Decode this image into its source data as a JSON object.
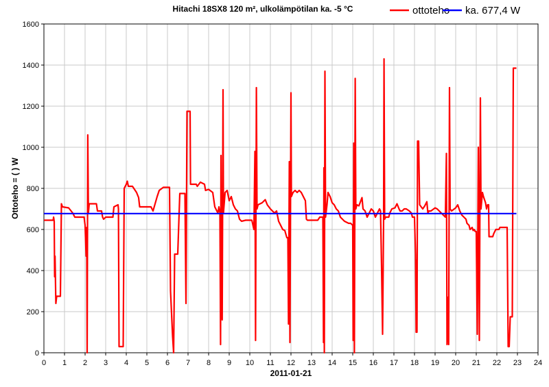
{
  "chart_data": {
    "type": "line",
    "title": "Hitachi 18SX8 120 m², ulkolämpötilan ka. -5 °C",
    "xlabel": "2011-01-21",
    "ylabel": "Ottoteho = ( ) W",
    "xlim": [
      0,
      24
    ],
    "ylim": [
      0,
      1600
    ],
    "x_ticks": [
      "0",
      "1",
      "2",
      "3",
      "4",
      "5",
      "6",
      "7",
      "8",
      "9",
      "10",
      "11",
      "12",
      "13",
      "14",
      "15",
      "16",
      "17",
      "18",
      "19",
      "20",
      "21",
      "22",
      "23",
      "24"
    ],
    "y_ticks": [
      "0",
      "200",
      "400",
      "600",
      "800",
      "1000",
      "1200",
      "1400",
      "1600"
    ],
    "grid": true,
    "legend": "top-right",
    "colors": {
      "ottoteho": "#ff0000",
      "average": "#0000ff"
    },
    "series": [
      {
        "name": "ottoteho",
        "color": "#ff0000",
        "points": [
          [
            0.0,
            645
          ],
          [
            0.45,
            645
          ],
          [
            0.47,
            660
          ],
          [
            0.5,
            640
          ],
          [
            0.52,
            370
          ],
          [
            0.54,
            470
          ],
          [
            0.58,
            240
          ],
          [
            0.62,
            275
          ],
          [
            0.8,
            275
          ],
          [
            0.85,
            725
          ],
          [
            0.9,
            710
          ],
          [
            1.2,
            705
          ],
          [
            1.4,
            680
          ],
          [
            1.5,
            660
          ],
          [
            1.95,
            660
          ],
          [
            2.0,
            620
          ],
          [
            2.05,
            470
          ],
          [
            2.08,
            610
          ],
          [
            2.1,
            0
          ],
          [
            2.13,
            1060
          ],
          [
            2.16,
            680
          ],
          [
            2.2,
            725
          ],
          [
            2.55,
            725
          ],
          [
            2.6,
            690
          ],
          [
            2.8,
            690
          ],
          [
            2.85,
            660
          ],
          [
            2.9,
            650
          ],
          [
            3.0,
            660
          ],
          [
            3.35,
            660
          ],
          [
            3.4,
            710
          ],
          [
            3.6,
            720
          ],
          [
            3.62,
            700
          ],
          [
            3.65,
            30
          ],
          [
            3.85,
            30
          ],
          [
            3.9,
            800
          ],
          [
            4.0,
            820
          ],
          [
            4.05,
            835
          ],
          [
            4.1,
            810
          ],
          [
            4.3,
            810
          ],
          [
            4.5,
            780
          ],
          [
            4.6,
            755
          ],
          [
            4.65,
            710
          ],
          [
            5.2,
            710
          ],
          [
            5.3,
            690
          ],
          [
            5.5,
            760
          ],
          [
            5.6,
            790
          ],
          [
            5.8,
            805
          ],
          [
            6.1,
            805
          ],
          [
            6.15,
            300
          ],
          [
            6.25,
            80
          ],
          [
            6.3,
            0
          ],
          [
            6.35,
            480
          ],
          [
            6.5,
            480
          ],
          [
            6.6,
            775
          ],
          [
            6.85,
            775
          ],
          [
            6.9,
            240
          ],
          [
            6.95,
            1175
          ],
          [
            7.1,
            1175
          ],
          [
            7.12,
            820
          ],
          [
            7.4,
            820
          ],
          [
            7.45,
            810
          ],
          [
            7.6,
            830
          ],
          [
            7.8,
            820
          ],
          [
            7.85,
            790
          ],
          [
            8.0,
            795
          ],
          [
            8.2,
            780
          ],
          [
            8.3,
            710
          ],
          [
            8.4,
            690
          ],
          [
            8.45,
            680
          ],
          [
            8.5,
            710
          ],
          [
            8.55,
            680
          ],
          [
            8.58,
            40
          ],
          [
            8.6,
            960
          ],
          [
            8.63,
            200
          ],
          [
            8.66,
            160
          ],
          [
            8.7,
            1280
          ],
          [
            8.72,
            680
          ],
          [
            8.8,
            780
          ],
          [
            8.9,
            790
          ],
          [
            9.0,
            740
          ],
          [
            9.1,
            760
          ],
          [
            9.2,
            720
          ],
          [
            9.3,
            700
          ],
          [
            9.4,
            690
          ],
          [
            9.5,
            650
          ],
          [
            9.6,
            640
          ],
          [
            9.8,
            645
          ],
          [
            10.1,
            645
          ],
          [
            10.2,
            600
          ],
          [
            10.25,
            980
          ],
          [
            10.28,
            60
          ],
          [
            10.32,
            1290
          ],
          [
            10.35,
            700
          ],
          [
            10.4,
            720
          ],
          [
            10.6,
            730
          ],
          [
            10.75,
            745
          ],
          [
            10.85,
            720
          ],
          [
            11.0,
            700
          ],
          [
            11.2,
            680
          ],
          [
            11.3,
            690
          ],
          [
            11.4,
            640
          ],
          [
            11.5,
            620
          ],
          [
            11.6,
            600
          ],
          [
            11.7,
            595
          ],
          [
            11.8,
            560
          ],
          [
            11.85,
            560
          ],
          [
            11.88,
            140
          ],
          [
            11.92,
            930
          ],
          [
            11.95,
            50
          ],
          [
            12.0,
            1265
          ],
          [
            12.02,
            760
          ],
          [
            12.1,
            780
          ],
          [
            12.2,
            790
          ],
          [
            12.3,
            780
          ],
          [
            12.4,
            790
          ],
          [
            12.5,
            780
          ],
          [
            12.6,
            760
          ],
          [
            12.7,
            740
          ],
          [
            12.75,
            650
          ],
          [
            12.8,
            645
          ],
          [
            13.3,
            645
          ],
          [
            13.4,
            660
          ],
          [
            13.55,
            660
          ],
          [
            13.58,
            50
          ],
          [
            13.6,
            900
          ],
          [
            13.62,
            0
          ],
          [
            13.65,
            1370
          ],
          [
            13.68,
            660
          ],
          [
            13.75,
            720
          ],
          [
            13.8,
            780
          ],
          [
            13.9,
            760
          ],
          [
            14.0,
            730
          ],
          [
            14.1,
            720
          ],
          [
            14.2,
            700
          ],
          [
            14.3,
            690
          ],
          [
            14.4,
            660
          ],
          [
            14.5,
            650
          ],
          [
            14.6,
            640
          ],
          [
            14.8,
            630
          ],
          [
            14.9,
            630
          ],
          [
            15.0,
            620
          ],
          [
            15.02,
            60
          ],
          [
            15.05,
            1020
          ],
          [
            15.08,
            0
          ],
          [
            15.12,
            1335
          ],
          [
            15.15,
            700
          ],
          [
            15.2,
            720
          ],
          [
            15.3,
            715
          ],
          [
            15.45,
            755
          ],
          [
            15.5,
            700
          ],
          [
            15.6,
            690
          ],
          [
            15.7,
            660
          ],
          [
            15.8,
            680
          ],
          [
            15.9,
            700
          ],
          [
            16.0,
            690
          ],
          [
            16.1,
            660
          ],
          [
            16.2,
            680
          ],
          [
            16.3,
            700
          ],
          [
            16.35,
            690
          ],
          [
            16.4,
            420
          ],
          [
            16.45,
            90
          ],
          [
            16.5,
            660
          ],
          [
            16.52,
            1430
          ],
          [
            16.55,
            650
          ],
          [
            16.6,
            660
          ],
          [
            16.75,
            660
          ],
          [
            16.8,
            680
          ],
          [
            16.9,
            700
          ],
          [
            17.05,
            705
          ],
          [
            17.15,
            725
          ],
          [
            17.25,
            700
          ],
          [
            17.3,
            690
          ],
          [
            17.4,
            690
          ],
          [
            17.5,
            700
          ],
          [
            17.6,
            700
          ],
          [
            17.75,
            690
          ],
          [
            17.85,
            680
          ],
          [
            17.9,
            660
          ],
          [
            18.0,
            660
          ],
          [
            18.05,
            480
          ],
          [
            18.08,
            100
          ],
          [
            18.1,
            450
          ],
          [
            18.12,
            100
          ],
          [
            18.15,
            1030
          ],
          [
            18.2,
            1030
          ],
          [
            18.25,
            720
          ],
          [
            18.4,
            700
          ],
          [
            18.5,
            715
          ],
          [
            18.6,
            735
          ],
          [
            18.65,
            680
          ],
          [
            18.7,
            690
          ],
          [
            18.8,
            690
          ],
          [
            19.0,
            705
          ],
          [
            19.1,
            700
          ],
          [
            19.2,
            690
          ],
          [
            19.4,
            670
          ],
          [
            19.5,
            660
          ],
          [
            19.55,
            970
          ],
          [
            19.58,
            40
          ],
          [
            19.62,
            270
          ],
          [
            19.66,
            40
          ],
          [
            19.7,
            1290
          ],
          [
            19.73,
            700
          ],
          [
            19.8,
            690
          ],
          [
            20.0,
            705
          ],
          [
            20.1,
            720
          ],
          [
            20.2,
            690
          ],
          [
            20.3,
            670
          ],
          [
            20.4,
            660
          ],
          [
            20.5,
            650
          ],
          [
            20.55,
            630
          ],
          [
            20.65,
            620
          ],
          [
            20.7,
            600
          ],
          [
            20.8,
            610
          ],
          [
            20.85,
            595
          ],
          [
            20.9,
            600
          ],
          [
            20.95,
            590
          ],
          [
            21.0,
            590
          ],
          [
            21.05,
            90
          ],
          [
            21.1,
            1000
          ],
          [
            21.15,
            60
          ],
          [
            21.2,
            1240
          ],
          [
            21.23,
            700
          ],
          [
            21.3,
            780
          ],
          [
            21.35,
            760
          ],
          [
            21.45,
            730
          ],
          [
            21.5,
            700
          ],
          [
            21.55,
            720
          ],
          [
            21.6,
            720
          ],
          [
            21.62,
            565
          ],
          [
            21.8,
            565
          ],
          [
            21.85,
            580
          ],
          [
            21.95,
            600
          ],
          [
            22.1,
            600
          ],
          [
            22.15,
            610
          ],
          [
            22.5,
            610
          ],
          [
            22.55,
            30
          ],
          [
            22.6,
            30
          ],
          [
            22.65,
            175
          ],
          [
            22.75,
            175
          ],
          [
            22.8,
            1385
          ],
          [
            22.95,
            1385
          ]
        ]
      },
      {
        "name": "ka. 677,4 W",
        "color": "#0000ff",
        "points": [
          [
            0.0,
            677.4
          ],
          [
            22.95,
            677.4
          ]
        ]
      }
    ]
  }
}
